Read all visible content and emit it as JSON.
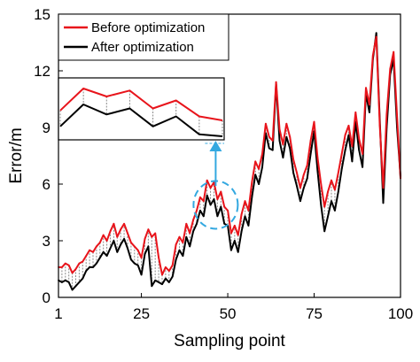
{
  "chart_data": {
    "type": "line",
    "xlabel": "Sampling point",
    "ylabel": "Error/m",
    "xlim": [
      1,
      100
    ],
    "ylim": [
      0,
      15
    ],
    "xticks": [
      1,
      25,
      50,
      75,
      100
    ],
    "yticks": [
      0,
      3,
      6,
      9,
      12,
      15
    ],
    "legend_position": "top-left",
    "grid": false,
    "series": [
      {
        "name": "Before optimization",
        "color": "#e8141b",
        "values": [
          1.6,
          1.6,
          1.8,
          1.7,
          1.3,
          1.5,
          1.8,
          1.9,
          2.2,
          2.5,
          2.4,
          2.7,
          2.9,
          3.3,
          3.0,
          3.5,
          3.9,
          3.2,
          3.6,
          3.9,
          3.4,
          2.9,
          2.7,
          2.5,
          2.1,
          3.1,
          3.6,
          3.2,
          3.4,
          2.1,
          1.2,
          1.6,
          1.4,
          1.7,
          2.8,
          3.2,
          2.9,
          3.9,
          3.4,
          4.1,
          4.6,
          5.3,
          5.1,
          6.2,
          5.8,
          6.1,
          5.2,
          5.6,
          4.8,
          4.6,
          3.4,
          3.8,
          3.3,
          4.4,
          5.1,
          4.6,
          6.1,
          7.2,
          6.8,
          7.6,
          9.2,
          8.5,
          8.3,
          11.4,
          8.9,
          8.1,
          9.2,
          8.5,
          7.3,
          6.6,
          5.8,
          6.5,
          7.0,
          8.3,
          9.3,
          7.4,
          6.0,
          4.8,
          5.6,
          6.2,
          5.7,
          6.6,
          7.6,
          8.6,
          9.1,
          8.0,
          9.8,
          8.4,
          7.6,
          11.1,
          10.2,
          12.8,
          13.8,
          9.1,
          5.8,
          9.7,
          12.1,
          13.0,
          9.6,
          6.3
        ]
      },
      {
        "name": "After optimization",
        "color": "#000000",
        "values": [
          0.9,
          0.8,
          0.9,
          0.8,
          0.4,
          0.6,
          0.8,
          1.0,
          1.4,
          1.6,
          1.6,
          1.8,
          2.1,
          2.4,
          2.2,
          2.6,
          3.0,
          2.4,
          2.8,
          3.1,
          2.6,
          2.0,
          1.8,
          1.7,
          1.2,
          2.3,
          2.7,
          0.6,
          0.9,
          0.8,
          0.7,
          1.0,
          0.8,
          1.1,
          2.0,
          2.5,
          2.2,
          3.2,
          2.7,
          3.5,
          3.9,
          4.6,
          4.3,
          5.4,
          4.9,
          5.2,
          4.3,
          4.8,
          3.9,
          3.8,
          2.5,
          3.0,
          2.4,
          3.5,
          4.3,
          3.8,
          5.3,
          6.5,
          6.0,
          6.9,
          8.7,
          7.9,
          7.8,
          11.3,
          8.3,
          7.4,
          8.5,
          7.9,
          6.6,
          5.9,
          5.1,
          5.8,
          6.3,
          7.6,
          8.8,
          6.7,
          4.9,
          3.5,
          4.3,
          5.1,
          4.6,
          5.6,
          6.8,
          7.8,
          8.6,
          7.2,
          9.3,
          7.8,
          6.9,
          10.8,
          9.8,
          12.6,
          14.0,
          9.4,
          5.0,
          9.0,
          11.8,
          12.6,
          9.0,
          6.4
        ]
      }
    ],
    "annotations": [
      {
        "type": "inset",
        "description": "zoom of sampling points 43-50",
        "x_range": [
          43,
          50
        ]
      },
      {
        "type": "dashed-circle",
        "color": "#33a8e0"
      },
      {
        "type": "arrow",
        "color": "#33a8e0"
      }
    ]
  }
}
